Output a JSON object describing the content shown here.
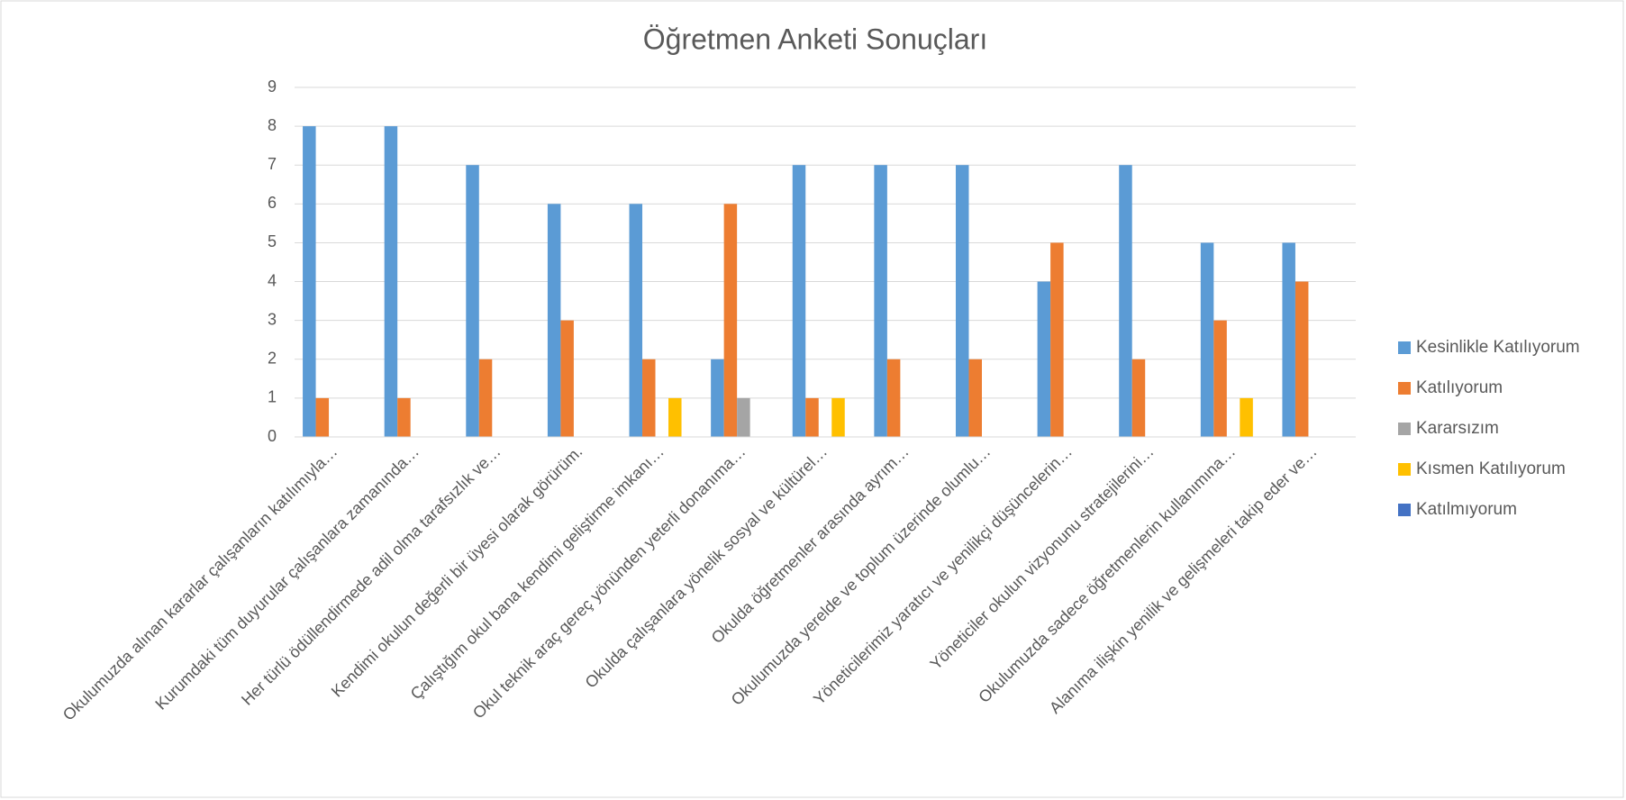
{
  "chart_data": {
    "type": "bar",
    "title": "Öğretmen Anketi Sonuçları",
    "categories": [
      "Okulumuzda alınan kararlar çalışanların katılımıyla…",
      "Kurumdaki tüm duyurular çalışanlara zamanında…",
      "Her türlü ödüllendirmede adil olma tarafsızlık ve…",
      "Kendimi okulun değerli bir üyesi olarak görürüm.",
      "Çalıştığım okul bana kendimi geliştirme imkanı…",
      "Okul teknik araç gereç yönünden yeterli donanıma…",
      "Okulda çalışanlara yönelik sosyal ve kültürel…",
      "Okulda öğretmenler arasında ayrım…",
      "Okulumuzda yerelde ve toplum üzerinde olumlu…",
      "Yöneticilerimiz yaratıcı ve yenilikçi düşüncelerin…",
      "Yöneticiler okulun vizyonunu stratejilerini…",
      "Okulumuzda sadece öğretmenlerin kullanımına…",
      "Alanıma ilişkin yenilik ve gelişmeleri takip eder ve…"
    ],
    "series": [
      {
        "name": "Kesinlikle Katılıyorum",
        "color": "#5b9bd5",
        "values": [
          8,
          8,
          7,
          6,
          6,
          2,
          7,
          7,
          7,
          4,
          7,
          5,
          5
        ]
      },
      {
        "name": "Katılıyorum",
        "color": "#ed7d31",
        "values": [
          1,
          1,
          2,
          3,
          2,
          6,
          1,
          2,
          2,
          5,
          2,
          3,
          4
        ]
      },
      {
        "name": "Kararsızım",
        "color": "#a5a5a5",
        "values": [
          0,
          0,
          0,
          0,
          0,
          1,
          0,
          0,
          0,
          0,
          0,
          0,
          0
        ]
      },
      {
        "name": "Kısmen Katılıyorum",
        "color": "#ffc000",
        "values": [
          0,
          0,
          0,
          0,
          1,
          0,
          1,
          0,
          0,
          0,
          0,
          1,
          0
        ]
      },
      {
        "name": "Katılmıyorum",
        "color": "#4472c4",
        "values": [
          0,
          0,
          0,
          0,
          0,
          0,
          0,
          0,
          0,
          0,
          0,
          0,
          0
        ]
      }
    ],
    "ylim": [
      0,
      9
    ],
    "yticks": [
      0,
      1,
      2,
      3,
      4,
      5,
      6,
      7,
      8,
      9
    ],
    "grid": true,
    "legend": "right"
  }
}
